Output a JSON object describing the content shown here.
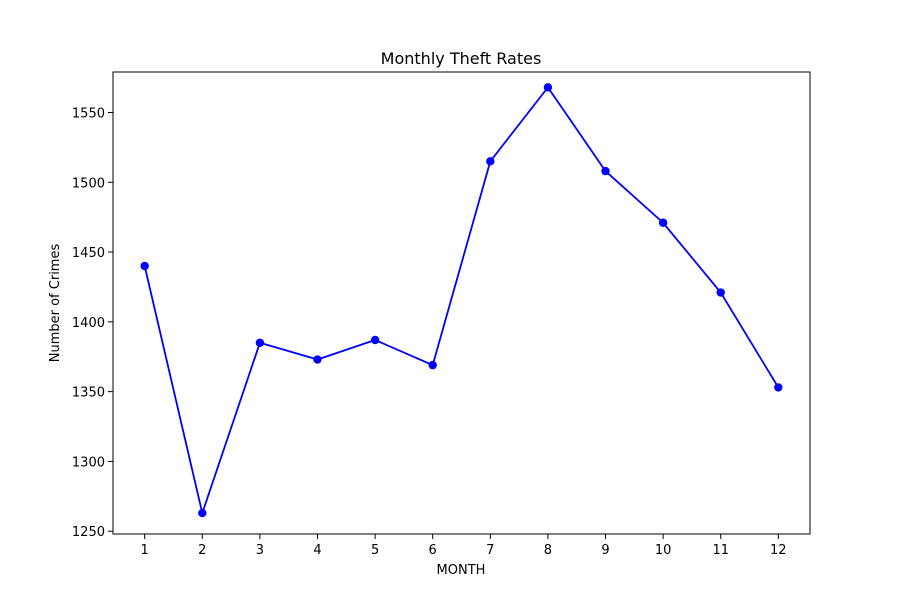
{
  "chart_data": {
    "type": "line",
    "title": "Monthly Theft Rates",
    "xlabel": "MONTH",
    "ylabel": "Number of Crimes",
    "x": [
      1,
      2,
      3,
      4,
      5,
      6,
      7,
      8,
      9,
      10,
      11,
      12
    ],
    "x_ticks": [
      "1",
      "2",
      "3",
      "4",
      "5",
      "6",
      "7",
      "8",
      "9",
      "10",
      "11",
      "12"
    ],
    "y_ticks": [
      1250,
      1300,
      1350,
      1400,
      1450,
      1500,
      1550
    ],
    "series": [
      {
        "values": [
          1440,
          1263,
          1385,
          1373,
          1387,
          1369,
          1515,
          1568,
          1508,
          1471,
          1421,
          1353
        ],
        "color": "#0000ff",
        "marker": "circle"
      }
    ],
    "xlim": [
      0.45,
      12.55
    ],
    "ylim": [
      1248,
      1579
    ],
    "grid": false,
    "legend": "none"
  }
}
